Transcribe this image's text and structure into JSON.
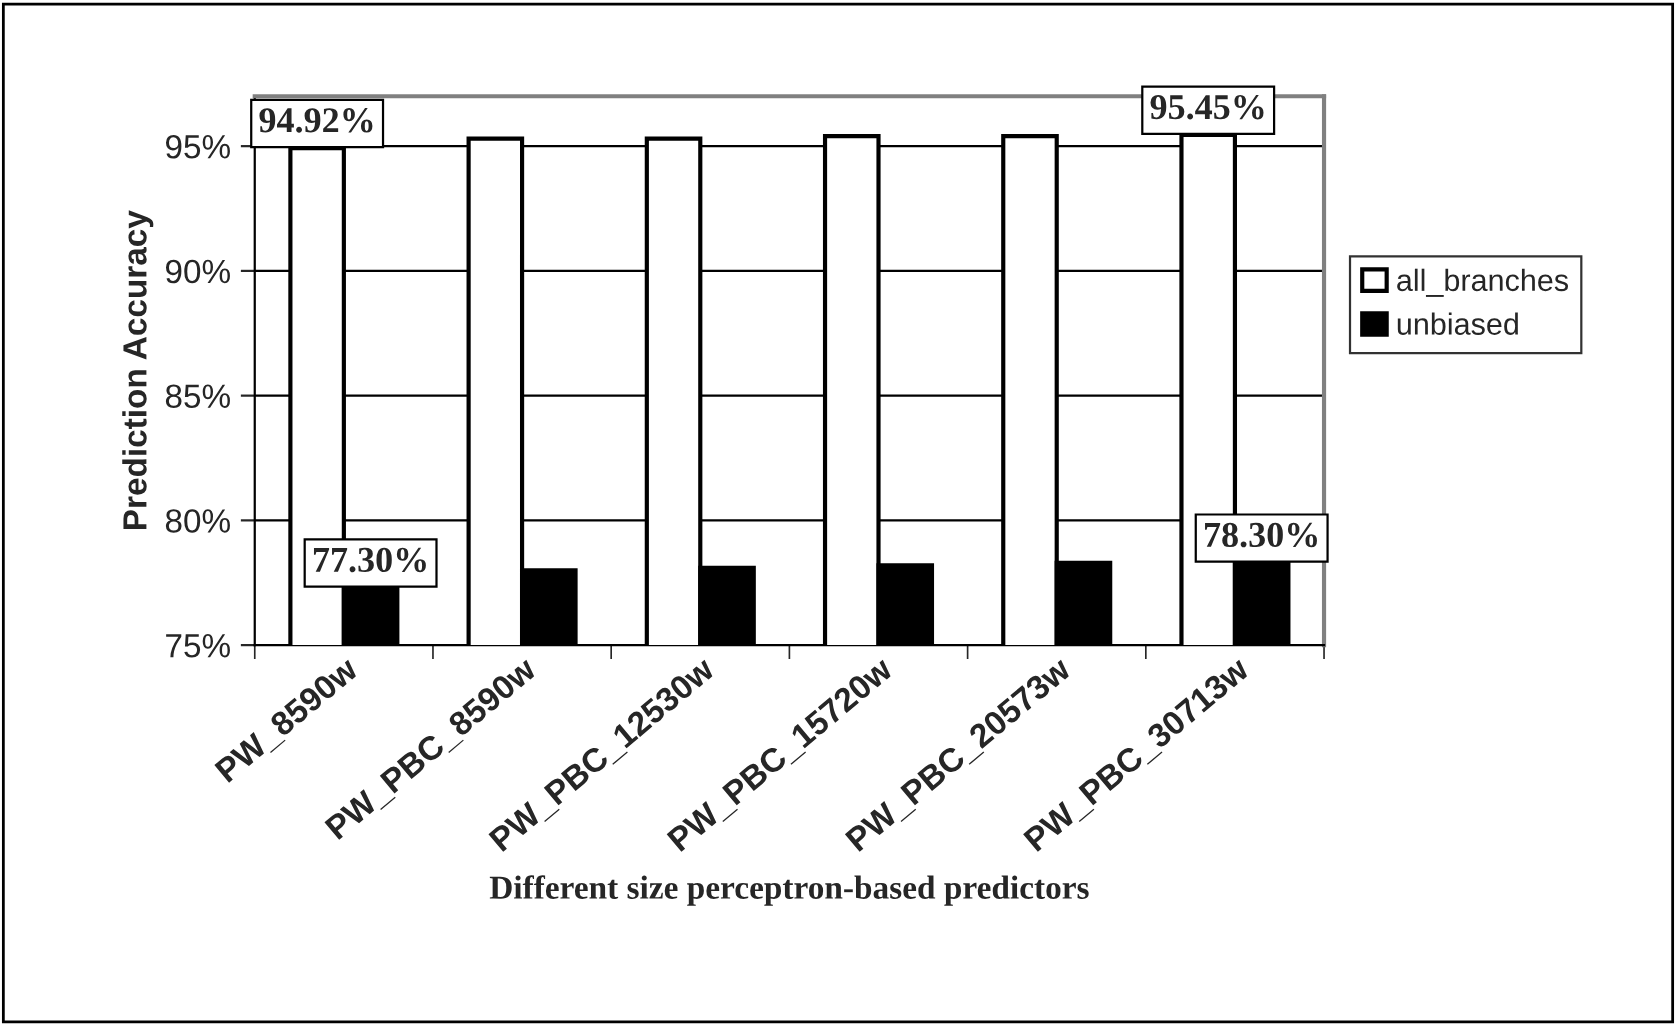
{
  "chart_data": {
    "type": "bar",
    "xlabel": "Different size perceptron-based predictors",
    "ylabel": "Prediction Accuracy",
    "categories": [
      "PW_8590w",
      "PW_PBC_8590w",
      "PW_PBC_12530w",
      "PW_PBC_15720w",
      "PW_PBC_20573w",
      "PW_PBC_30713w"
    ],
    "series": [
      {
        "name": "all_branches",
        "color": "#ffffff",
        "values": [
          94.92,
          95.3,
          95.3,
          95.4,
          95.4,
          95.45
        ],
        "value_labels": [
          "94.92%",
          null,
          null,
          null,
          null,
          "95.45%"
        ]
      },
      {
        "name": "unbiased",
        "color": "#000000",
        "values": [
          77.3,
          78.0,
          78.1,
          78.2,
          78.3,
          78.3
        ],
        "value_labels": [
          "77.30%",
          null,
          null,
          null,
          null,
          "78.30%"
        ]
      }
    ],
    "ylim": [
      75,
      97
    ],
    "yticks": [
      {
        "value": 75,
        "label": "75%"
      },
      {
        "value": 80,
        "label": "80%"
      },
      {
        "value": 85,
        "label": "85%"
      },
      {
        "value": 90,
        "label": "90%"
      },
      {
        "value": 95,
        "label": "95%"
      }
    ],
    "grid": "y",
    "legend": "right"
  }
}
